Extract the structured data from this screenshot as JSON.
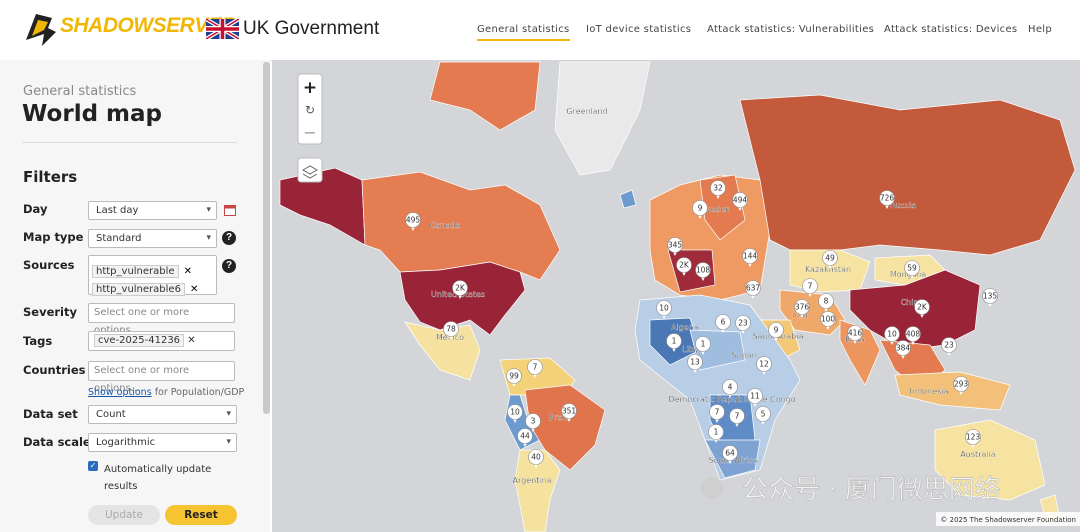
{
  "header": {
    "brand": "SHADOWSERVER",
    "partner": "UK Government",
    "nav": [
      "General statistics",
      "IoT device statistics",
      "Attack statistics: Vulnerabilities",
      "Attack statistics: Devices",
      "Help"
    ]
  },
  "sidebar": {
    "breadcrumb": "General statistics",
    "title": "World map",
    "filters_heading": "Filters",
    "day": {
      "label": "Day",
      "value": "Last day"
    },
    "map_type": {
      "label": "Map type",
      "value": "Standard"
    },
    "sources": {
      "label": "Sources",
      "tags": [
        "http_vulnerable",
        "http_vulnerable6"
      ]
    },
    "severity": {
      "label": "Severity",
      "placeholder": "Select one or more options..."
    },
    "tags": {
      "label": "Tags",
      "tags": [
        "cve-2025-41236"
      ]
    },
    "countries": {
      "label": "Countries",
      "placeholder": "Select one or more options..."
    },
    "show_options": {
      "link": "Show options",
      "text": "for Population/GDP"
    },
    "data_set": {
      "label": "Data set",
      "value": "Count"
    },
    "data_scale": {
      "label": "Data scale",
      "value": "Logarithmic"
    },
    "auto_update": {
      "line1": "Automatically update",
      "line2": "results"
    },
    "buttons": {
      "update": "Update",
      "reset": "Reset"
    }
  },
  "map": {
    "zoom_in": "+",
    "zoom_out": "−",
    "country_labels": [
      "Greenland",
      "Canada",
      "United States",
      "Mexico",
      "Brazil",
      "Argentina",
      "Russia",
      "Kazakhstan",
      "Mongolia",
      "China",
      "Iran",
      "India",
      "Algeria",
      "Libya",
      "Sudan",
      "Saudi Arabia",
      "Democratic Republic",
      "the Congo",
      "South Africa",
      "Indonesia",
      "Australia",
      "weden"
    ],
    "markers": [
      "32",
      "494",
      "9",
      "495",
      "726",
      "345",
      "2K",
      "108",
      "144",
      "637",
      "49",
      "59",
      "2K",
      "7",
      "8",
      "376",
      "100",
      "10",
      "6",
      "23",
      "135",
      "416",
      "2K",
      "408",
      "78",
      "1",
      "1",
      "13",
      "12",
      "384",
      "10",
      "23",
      "9",
      "7",
      "99",
      "351",
      "10",
      "3",
      "44",
      "40",
      "4",
      "11",
      "7",
      "7",
      "5",
      "1",
      "64",
      "123",
      "293"
    ],
    "attribution": "© 2025 The Shadowserver Foundation"
  },
  "watermark": "公众号 · 厦门微思网络"
}
